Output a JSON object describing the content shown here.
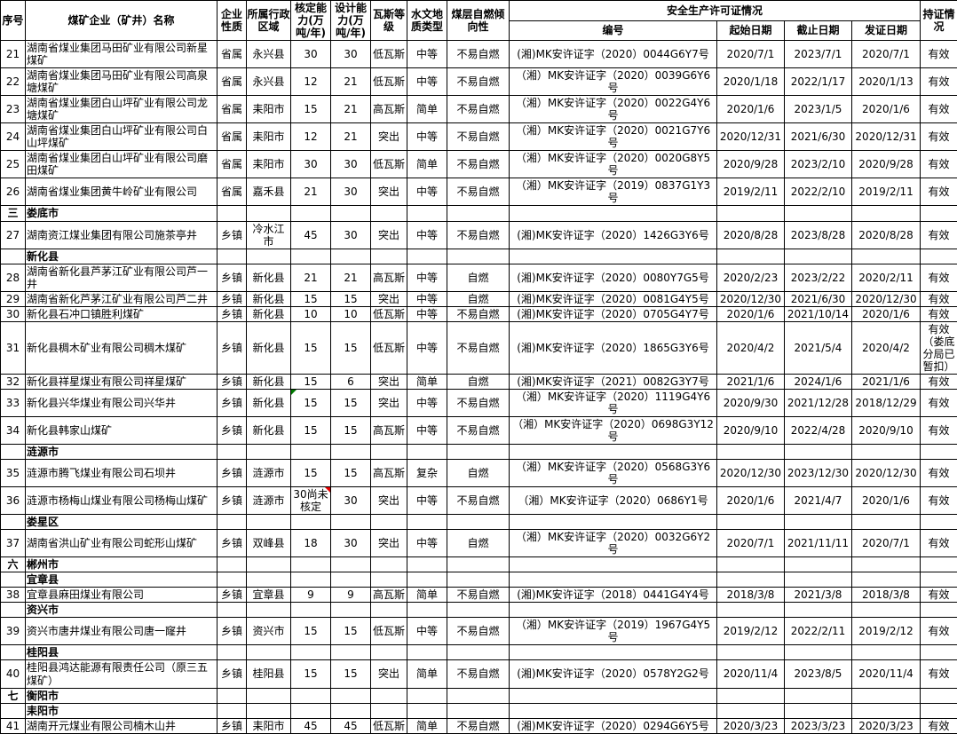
{
  "table": {
    "header": {
      "seq": "序号",
      "name": "煤矿企业（矿井）名称",
      "nature": "企业性质",
      "region": "所属行政区域",
      "approved": "核定能力(万吨/年)",
      "design": "设计能力(万吨/年)",
      "gas": "瓦斯等级",
      "hydro": "水文地质类型",
      "combustion": "煤层自燃倾向性",
      "license_group": "安全生产许可证情况",
      "license_no": "编号",
      "start": "起始日期",
      "end": "截止日期",
      "issue": "发证日期",
      "status": "持证情况"
    },
    "marker_colors": {
      "comment_green": "#007a00",
      "comment_red": "#e60000"
    },
    "rows": [
      {
        "type": "mine",
        "seq": "21",
        "name": "湖南省煤业集团马田矿业有限公司新星煤矿",
        "nature": "省属",
        "region": "永兴县",
        "approved": "30",
        "design": "30",
        "gas": "低瓦斯",
        "hydro": "中等",
        "combustion": "不易自燃",
        "license_no": "(湘)MK安许证字（2020）0044G6Y7号",
        "start": "2020/7/1",
        "end": "2023/7/1",
        "issue": "2020/7/1",
        "status": "有效"
      },
      {
        "type": "mine",
        "seq": "22",
        "name": "湖南省煤业集团马田矿业有限公司高泉塘煤矿",
        "nature": "省属",
        "region": "永兴县",
        "approved": "12",
        "design": "21",
        "gas": "低瓦斯",
        "hydro": "中等",
        "combustion": "不易自燃",
        "license_no": "（湘）MK安许证字（2020）0039G6Y6号",
        "start": "2020/1/18",
        "end": "2022/1/17",
        "issue": "2020/1/13",
        "status": "有效"
      },
      {
        "type": "mine",
        "seq": "23",
        "name": "湖南省煤业集团白山坪矿业有限公司龙塘煤矿",
        "nature": "省属",
        "region": "耒阳市",
        "approved": "15",
        "design": "21",
        "gas": "高瓦斯",
        "hydro": "简单",
        "combustion": "不易自燃",
        "license_no": "（湘）MK安许证字（2020）0022G4Y6号",
        "start": "2020/1/6",
        "end": "2023/1/5",
        "issue": "2020/1/6",
        "status": "有效"
      },
      {
        "type": "mine",
        "seq": "24",
        "name": "湖南省煤业集团白山坪矿业有限公司白山坪煤矿",
        "nature": "省属",
        "region": "耒阳市",
        "approved": "12",
        "design": "21",
        "gas": "突出",
        "hydro": "中等",
        "combustion": "不易自燃",
        "license_no": "（湘）MK安许证字（2020）0021G7Y6号",
        "start": "2020/12/31",
        "end": "2021/6/30",
        "issue": "2020/12/31",
        "status": "有效"
      },
      {
        "type": "mine",
        "seq": "25",
        "name": "湖南省煤业集团白山坪矿业有限公司磨田煤矿",
        "nature": "省属",
        "region": "耒阳市",
        "approved": "30",
        "design": "30",
        "gas": "低瓦斯",
        "hydro": "简单",
        "combustion": "不易自燃",
        "license_no": "（湘）MK安许证字（2020）0020G8Y5号",
        "start": "2020/9/28",
        "end": "2023/2/10",
        "issue": "2020/9/28",
        "status": "有效"
      },
      {
        "type": "mine",
        "seq": "26",
        "name": "湖南省煤业集团黄牛岭矿业有限公司",
        "nature": "省属",
        "region": "嘉禾县",
        "approved": "21",
        "design": "30",
        "gas": "突出",
        "hydro": "中等",
        "combustion": "不易自燃",
        "license_no": "（湘）MK安许证字（2019）0837G1Y3号",
        "start": "2019/2/11",
        "end": "2022/2/10",
        "issue": "2019/2/11",
        "status": "有效"
      },
      {
        "type": "section",
        "seq": "三",
        "name": "娄底市"
      },
      {
        "type": "mine",
        "seq": "27",
        "name": "湖南资江煤业集团有限公司施茶亭井",
        "nature": "乡镇",
        "region": "冷水江市",
        "approved": "45",
        "design": "30",
        "gas": "突出",
        "hydro": "中等",
        "combustion": "不易自燃",
        "license_no": "(湘)MK安许证字（2020）1426G3Y6号",
        "start": "2020/8/28",
        "end": "2023/8/28",
        "issue": "2020/8/28",
        "status": "有效"
      },
      {
        "type": "section",
        "seq": "",
        "name": "新化县"
      },
      {
        "type": "mine",
        "seq": "28",
        "name": "湖南省新化县芦茅江矿业有限公司芦一井",
        "nature": "乡镇",
        "region": "新化县",
        "approved": "21",
        "design": "21",
        "gas": "高瓦斯",
        "hydro": "中等",
        "combustion": "自燃",
        "license_no": "(湘)MK安许证字（2020）0080Y7G5号",
        "start": "2020/2/23",
        "end": "2023/2/22",
        "issue": "2020/2/11",
        "status": "有效"
      },
      {
        "type": "mine",
        "seq": "29",
        "name": "湖南省新化芦茅江矿业有限公司芦二井",
        "nature": "乡镇",
        "region": "新化县",
        "approved": "15",
        "design": "15",
        "gas": "突出",
        "hydro": "中等",
        "combustion": "自燃",
        "license_no": "(湘)MK安许证字（2020）0081G4Y5号",
        "start": "2020/12/30",
        "end": "2021/6/30",
        "issue": "2020/12/30",
        "status": "有效"
      },
      {
        "type": "mine",
        "seq": "30",
        "name": "新化县石冲口镇胜利煤矿",
        "nature": "乡镇",
        "region": "新化县",
        "approved": "10",
        "design": "10",
        "gas": "低瓦斯",
        "hydro": "中等",
        "combustion": "不易自燃",
        "license_no": "(湘)MK安许证字（2020）0705G4Y7号",
        "start": "2020/1/6",
        "end": "2021/10/14",
        "issue": "2020/1/6",
        "status": "有效"
      },
      {
        "type": "mine",
        "seq": "31",
        "name": "新化县稠木矿业有限公司稠木煤矿",
        "nature": "乡镇",
        "region": "新化县",
        "approved": "15",
        "design": "15",
        "gas": "低瓦斯",
        "hydro": "中等",
        "combustion": "不易自燃",
        "license_no": "(湘)MK安许证字（2020）1865G3Y6号",
        "start": "2020/4/2",
        "end": "2021/5/4",
        "issue": "2020/4/2",
        "status": "有效（娄底分局已暂扣）"
      },
      {
        "type": "mine",
        "seq": "32",
        "name": "新化县祥星煤业有限公司祥星煤矿",
        "nature": "乡镇",
        "region": "新化县",
        "approved": "15",
        "design": "6",
        "gas": "突出",
        "hydro": "简单",
        "combustion": "自燃",
        "license_no": "(湘)MK安许证字（2021）0082G3Y7号",
        "start": "2021/1/6",
        "end": "2024/1/6",
        "issue": "2021/1/6",
        "status": "有效"
      },
      {
        "type": "mine",
        "seq": "33",
        "name": "新化县兴华煤业有限公司兴华井",
        "nature": "乡镇",
        "region": "新化县",
        "approved": "15",
        "approved_marker": "green-tl",
        "design": "15",
        "gas": "突出",
        "hydro": "中等",
        "combustion": "不易自燃",
        "license_no": "（湘）MK安许证字（2020）1119G4Y6号",
        "start": "2020/9/30",
        "end": "2021/12/28",
        "issue": "2018/12/29",
        "status": "有效"
      },
      {
        "type": "mine",
        "seq": "34",
        "name": "新化县韩家山煤矿",
        "nature": "乡镇",
        "region": "新化县",
        "approved": "15",
        "design": "15",
        "gas": "高瓦斯",
        "hydro": "中等",
        "combustion": "不易自燃",
        "license_no": "（湘）MK安许证字（2020）0698G3Y12号",
        "start": "2020/9/10",
        "end": "2022/4/28",
        "issue": "2020/9/10",
        "status": "有效"
      },
      {
        "type": "section",
        "seq": "",
        "name": "涟源市"
      },
      {
        "type": "mine",
        "seq": "35",
        "name": "涟源市腾飞煤业有限公司石坝井",
        "nature": "乡镇",
        "region": "涟源市",
        "approved": "15",
        "design": "15",
        "gas": "高瓦斯",
        "hydro": "复杂",
        "combustion": "自燃",
        "license_no": "（湘）MK安许证字（2020）0568G3Y6号",
        "start": "2020/12/30",
        "end": "2023/12/30",
        "issue": "2020/12/30",
        "status": "有效"
      },
      {
        "type": "mine",
        "seq": "36",
        "name": "涟源市杨梅山煤业有限公司杨梅山煤矿",
        "nature": "乡镇",
        "region": "涟源市",
        "approved": "30尚未核定",
        "approved_marker": "red-tr",
        "design": "30",
        "gas": "突出",
        "hydro": "中等",
        "combustion": "不易自燃",
        "license_no": "（湘）MK安许证字（2020）0686Y1号",
        "start": "2020/1/6",
        "end": "2021/4/7",
        "issue": "2020/1/6",
        "status": "有效"
      },
      {
        "type": "section",
        "seq": "",
        "name": "娄星区"
      },
      {
        "type": "mine",
        "seq": "37",
        "name": "湖南省洪山矿业有限公司蛇形山煤矿",
        "nature": "乡镇",
        "region": "双峰县",
        "approved": "18",
        "design": "30",
        "gas": "突出",
        "hydro": "中等",
        "combustion": "自燃",
        "license_no": "（湘）MK安许证字（2020）0032G6Y2号",
        "start": "2020/7/1",
        "end": "2021/11/11",
        "issue": "2020/7/1",
        "status": "有效"
      },
      {
        "type": "section",
        "seq": "六",
        "name": "郴州市"
      },
      {
        "type": "section",
        "seq": "",
        "name": "宜章县"
      },
      {
        "type": "mine",
        "seq": "38",
        "name": "宜章县麻田煤业有限公司",
        "nature": "乡镇",
        "region": "宜章县",
        "approved": "9",
        "design": "9",
        "gas": "高瓦斯",
        "hydro": "简单",
        "combustion": "不易自燃",
        "license_no": "(湘)MK安许证字（2018）0441G4Y4号",
        "start": "2018/3/8",
        "end": "2021/3/8",
        "issue": "2018/3/8",
        "status": "有效"
      },
      {
        "type": "section",
        "seq": "",
        "name": "资兴市"
      },
      {
        "type": "mine",
        "seq": "39",
        "name": "资兴市唐井煤业有限公司唐一窿井",
        "nature": "乡镇",
        "region": "资兴市",
        "approved": "15",
        "design": "15",
        "gas": "低瓦斯",
        "hydro": "中等",
        "combustion": "不易自燃",
        "license_no": "（湘）MK安许证字（2019）1967G4Y5号",
        "start": "2019/2/12",
        "end": "2022/2/11",
        "issue": "2019/2/12",
        "status": "有效"
      },
      {
        "type": "section",
        "seq": "",
        "name": "桂阳县"
      },
      {
        "type": "mine",
        "seq": "40",
        "name": "桂阳县鸿达能源有限责任公司（原三五煤矿）",
        "nature": "乡镇",
        "region": "桂阳县",
        "approved": "15",
        "design": "15",
        "gas": "突出",
        "hydro": "简单",
        "combustion": "不易自燃",
        "license_no": "(湘)MK安许证字（2020）0578Y2G2号",
        "start": "2020/11/4",
        "end": "2023/8/5",
        "issue": "2020/11/4",
        "status": "有效"
      },
      {
        "type": "section",
        "seq": "七",
        "name": "衡阳市"
      },
      {
        "type": "section",
        "seq": "",
        "name": "耒阳市"
      },
      {
        "type": "mine",
        "seq": "41",
        "name": "湖南开元煤业有限公司楠木山井",
        "nature": "乡镇",
        "region": "耒阳市",
        "approved": "45",
        "design": "45",
        "gas": "低瓦斯",
        "hydro": "简单",
        "combustion": "不易自燃",
        "license_no": "(湘)MK安许证字（2020）0294G6Y5号",
        "start": "2020/3/23",
        "end": "2023/3/23",
        "issue": "2020/3/23",
        "status": "有效"
      }
    ]
  }
}
